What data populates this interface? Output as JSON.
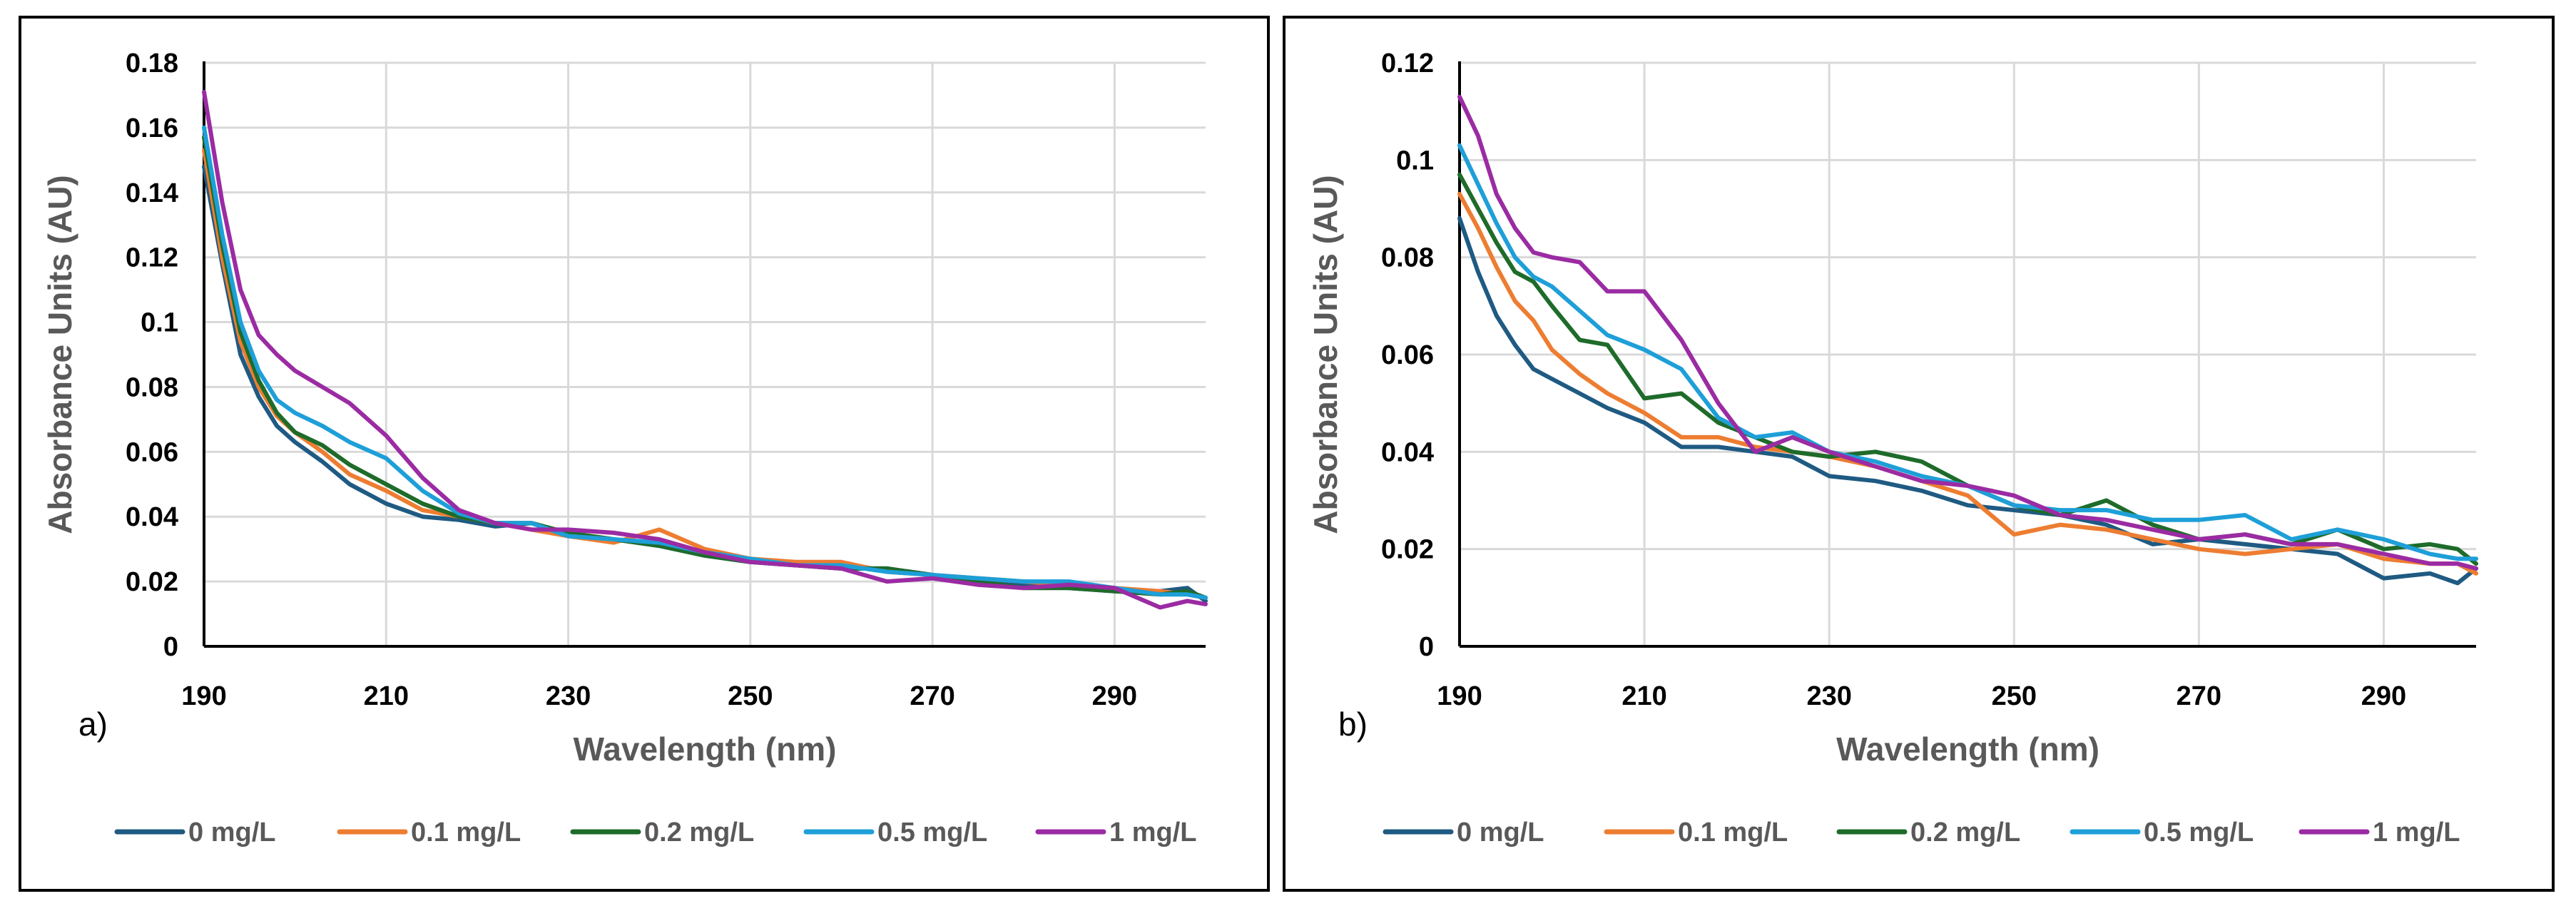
{
  "colors": {
    "0 mg/L": "#1f5a82",
    "0.1 mg/L": "#ed7d31",
    "0.2 mg/L": "#1e6b2a",
    "0.5 mg/L": "#1e9fd8",
    "1 mg/L": "#9b2ba3"
  },
  "chart_data": [
    {
      "type": "line",
      "panel_label": "a)",
      "title": "",
      "xlabel": "Wavelength (nm)",
      "ylabel": "Absorbance Units (AU)",
      "xlim": [
        190,
        300
      ],
      "ylim": [
        0,
        0.18
      ],
      "xticks": [
        "190",
        "210",
        "230",
        "250",
        "270",
        "290"
      ],
      "yticks": [
        "0",
        "0.02",
        "0.04",
        "0.06",
        "0.08",
        "0.1",
        "0.12",
        "0.14",
        "0.16",
        "0.18"
      ],
      "legend_position": "bottom",
      "series": [
        {
          "name": "0 mg/L",
          "x": [
            190,
            192,
            194,
            196,
            198,
            200,
            203,
            206,
            210,
            214,
            218,
            222,
            226,
            230,
            235,
            240,
            245,
            250,
            255,
            260,
            265,
            270,
            275,
            280,
            285,
            290,
            295,
            298,
            300
          ],
          "y": [
            0.148,
            0.118,
            0.09,
            0.077,
            0.068,
            0.063,
            0.057,
            0.05,
            0.044,
            0.04,
            0.039,
            0.037,
            0.038,
            0.034,
            0.033,
            0.031,
            0.028,
            0.026,
            0.025,
            0.024,
            0.024,
            0.022,
            0.02,
            0.019,
            0.018,
            0.017,
            0.017,
            0.018,
            0.014
          ]
        },
        {
          "name": "0.1 mg/L",
          "x": [
            190,
            192,
            194,
            196,
            198,
            200,
            203,
            206,
            210,
            214,
            218,
            222,
            226,
            230,
            235,
            240,
            245,
            250,
            255,
            260,
            265,
            270,
            275,
            280,
            285,
            290,
            295,
            298,
            300
          ],
          "y": [
            0.153,
            0.12,
            0.094,
            0.08,
            0.071,
            0.066,
            0.06,
            0.053,
            0.048,
            0.042,
            0.04,
            0.038,
            0.036,
            0.034,
            0.032,
            0.036,
            0.03,
            0.027,
            0.026,
            0.026,
            0.023,
            0.022,
            0.021,
            0.02,
            0.019,
            0.018,
            0.017,
            0.016,
            0.015
          ]
        },
        {
          "name": "0.2 mg/L",
          "x": [
            190,
            192,
            194,
            196,
            198,
            200,
            203,
            206,
            210,
            214,
            218,
            222,
            226,
            230,
            235,
            240,
            245,
            250,
            255,
            260,
            265,
            270,
            275,
            280,
            285,
            290,
            295,
            298,
            300
          ],
          "y": [
            0.157,
            0.124,
            0.097,
            0.082,
            0.072,
            0.066,
            0.062,
            0.056,
            0.05,
            0.044,
            0.04,
            0.038,
            0.038,
            0.035,
            0.033,
            0.031,
            0.028,
            0.026,
            0.025,
            0.024,
            0.024,
            0.022,
            0.02,
            0.018,
            0.018,
            0.017,
            0.016,
            0.017,
            0.015
          ]
        },
        {
          "name": "0.5 mg/L",
          "x": [
            190,
            192,
            194,
            196,
            198,
            200,
            203,
            206,
            210,
            214,
            218,
            222,
            226,
            230,
            235,
            240,
            245,
            250,
            255,
            260,
            265,
            270,
            275,
            280,
            285,
            290,
            295,
            298,
            300
          ],
          "y": [
            0.16,
            0.127,
            0.1,
            0.085,
            0.076,
            0.072,
            0.068,
            0.063,
            0.058,
            0.048,
            0.041,
            0.038,
            0.038,
            0.034,
            0.033,
            0.032,
            0.029,
            0.027,
            0.025,
            0.025,
            0.023,
            0.022,
            0.021,
            0.02,
            0.02,
            0.018,
            0.016,
            0.016,
            0.015
          ]
        },
        {
          "name": "1 mg/L",
          "x": [
            190,
            192,
            194,
            196,
            198,
            200,
            203,
            206,
            210,
            214,
            218,
            222,
            226,
            230,
            235,
            240,
            245,
            250,
            255,
            260,
            265,
            270,
            275,
            280,
            285,
            290,
            295,
            298,
            300
          ],
          "y": [
            0.171,
            0.137,
            0.11,
            0.096,
            0.09,
            0.085,
            0.08,
            0.075,
            0.065,
            0.052,
            0.042,
            0.038,
            0.036,
            0.036,
            0.035,
            0.033,
            0.029,
            0.026,
            0.025,
            0.024,
            0.02,
            0.021,
            0.019,
            0.018,
            0.019,
            0.018,
            0.012,
            0.014,
            0.013
          ]
        }
      ]
    },
    {
      "type": "line",
      "panel_label": "b)",
      "title": "",
      "xlabel": "Wavelength (nm)",
      "ylabel": "Absorbance Units (AU)",
      "xlim": [
        190,
        300
      ],
      "ylim": [
        0,
        0.12
      ],
      "xticks": [
        "190",
        "210",
        "230",
        "250",
        "270",
        "290"
      ],
      "yticks": [
        "0",
        "0.02",
        "0.04",
        "0.06",
        "0.08",
        "0.1",
        "0.12"
      ],
      "legend_position": "bottom",
      "series": [
        {
          "name": "0 mg/L",
          "x": [
            190,
            192,
            194,
            196,
            198,
            200,
            203,
            206,
            210,
            214,
            218,
            222,
            226,
            230,
            235,
            240,
            245,
            250,
            255,
            260,
            265,
            270,
            275,
            280,
            285,
            290,
            295,
            298,
            300
          ],
          "y": [
            0.088,
            0.077,
            0.068,
            0.062,
            0.057,
            0.055,
            0.052,
            0.049,
            0.046,
            0.041,
            0.041,
            0.04,
            0.039,
            0.035,
            0.034,
            0.032,
            0.029,
            0.028,
            0.027,
            0.025,
            0.021,
            0.022,
            0.021,
            0.02,
            0.019,
            0.014,
            0.015,
            0.013,
            0.016
          ]
        },
        {
          "name": "0.1 mg/L",
          "x": [
            190,
            192,
            194,
            196,
            198,
            200,
            203,
            206,
            210,
            214,
            218,
            222,
            226,
            230,
            235,
            240,
            245,
            250,
            255,
            260,
            265,
            270,
            275,
            280,
            285,
            290,
            295,
            298,
            300
          ],
          "y": [
            0.093,
            0.086,
            0.078,
            0.071,
            0.067,
            0.061,
            0.056,
            0.052,
            0.048,
            0.043,
            0.043,
            0.041,
            0.04,
            0.039,
            0.037,
            0.034,
            0.031,
            0.023,
            0.025,
            0.024,
            0.022,
            0.02,
            0.019,
            0.02,
            0.021,
            0.018,
            0.017,
            0.017,
            0.015
          ]
        },
        {
          "name": "0.2 mg/L",
          "x": [
            190,
            192,
            194,
            196,
            198,
            200,
            203,
            206,
            210,
            214,
            218,
            222,
            226,
            230,
            235,
            240,
            245,
            250,
            255,
            260,
            265,
            270,
            275,
            280,
            285,
            290,
            295,
            298,
            300
          ],
          "y": [
            0.097,
            0.09,
            0.083,
            0.077,
            0.075,
            0.07,
            0.063,
            0.062,
            0.051,
            0.052,
            0.046,
            0.043,
            0.04,
            0.039,
            0.04,
            0.038,
            0.033,
            0.029,
            0.027,
            0.03,
            0.025,
            0.022,
            0.023,
            0.021,
            0.024,
            0.02,
            0.021,
            0.02,
            0.017
          ]
        },
        {
          "name": "0.5 mg/L",
          "x": [
            190,
            192,
            194,
            196,
            198,
            200,
            203,
            206,
            210,
            214,
            218,
            222,
            226,
            230,
            235,
            240,
            245,
            250,
            255,
            260,
            265,
            270,
            275,
            280,
            285,
            290,
            295,
            298,
            300
          ],
          "y": [
            0.103,
            0.095,
            0.087,
            0.08,
            0.076,
            0.074,
            0.069,
            0.064,
            0.061,
            0.057,
            0.047,
            0.043,
            0.044,
            0.04,
            0.038,
            0.035,
            0.033,
            0.029,
            0.028,
            0.028,
            0.026,
            0.026,
            0.027,
            0.022,
            0.024,
            0.022,
            0.019,
            0.018,
            0.018
          ]
        },
        {
          "name": "1 mg/L",
          "x": [
            190,
            192,
            194,
            196,
            198,
            200,
            203,
            206,
            210,
            214,
            218,
            222,
            226,
            230,
            235,
            240,
            245,
            250,
            255,
            260,
            265,
            270,
            275,
            280,
            285,
            290,
            295,
            298,
            300
          ],
          "y": [
            0.113,
            0.105,
            0.093,
            0.086,
            0.081,
            0.08,
            0.079,
            0.073,
            0.073,
            0.063,
            0.05,
            0.04,
            0.043,
            0.04,
            0.037,
            0.034,
            0.033,
            0.031,
            0.027,
            0.026,
            0.024,
            0.022,
            0.023,
            0.021,
            0.021,
            0.019,
            0.017,
            0.017,
            0.016
          ]
        }
      ]
    }
  ]
}
